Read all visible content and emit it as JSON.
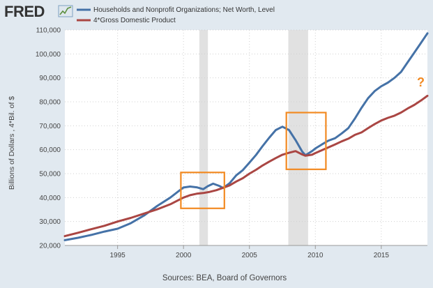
{
  "logo": {
    "text": "FRED"
  },
  "colors": {
    "background": "#e1e9f0",
    "plot_background": "#ffffff",
    "net_worth": "#4572a7",
    "gdp": "#aa4643",
    "recession": "#e1e1e1",
    "highlight": "#f28a22",
    "grid": "#d0d0d0"
  },
  "annotation": {
    "text": "?"
  },
  "source": {
    "text": "Sources: BEA, Board of Governors"
  },
  "chart_data": {
    "type": "line",
    "title": "",
    "xlabel": "",
    "ylabel": "Billions of Dollars , 4*Bil. of $",
    "xlim": [
      1991.0,
      2018.5
    ],
    "ylim": [
      20000,
      110000
    ],
    "x_ticks": [
      1995,
      2000,
      2005,
      2010,
      2015
    ],
    "x_tick_labels": [
      "1995",
      "2000",
      "2005",
      "2010",
      "2015"
    ],
    "y_ticks": [
      20000,
      30000,
      40000,
      50000,
      60000,
      70000,
      80000,
      90000,
      100000,
      110000
    ],
    "y_tick_labels": [
      "20,000",
      "30,000",
      "40,000",
      "50,000",
      "60,000",
      "70,000",
      "80,000",
      "90,000",
      "100,000",
      "110,000"
    ],
    "grid": true,
    "legend_position": "top-left",
    "recessions": [
      [
        2001.2,
        2001.85
      ],
      [
        2007.95,
        2009.45
      ]
    ],
    "highlight_boxes": [
      {
        "x": [
          1999.8,
          2003.1
        ],
        "y": [
          35500,
          50500
        ]
      },
      {
        "x": [
          2007.8,
          2010.8
        ],
        "y": [
          51800,
          75500
        ]
      }
    ],
    "series": [
      {
        "name": "Households and Nonprofit Organizations; Net Worth, Level",
        "color": "#4572a7",
        "points": [
          [
            1991.0,
            22200
          ],
          [
            1992.0,
            23200
          ],
          [
            1993.0,
            24400
          ],
          [
            1994.0,
            25800
          ],
          [
            1995.0,
            27000
          ],
          [
            1996.0,
            29300
          ],
          [
            1997.0,
            32500
          ],
          [
            1998.0,
            36500
          ],
          [
            1999.0,
            40000
          ],
          [
            1999.75,
            43200
          ],
          [
            2000.0,
            44200
          ],
          [
            2000.5,
            44600
          ],
          [
            2001.0,
            44300
          ],
          [
            2001.5,
            43500
          ],
          [
            2001.85,
            44800
          ],
          [
            2002.25,
            45800
          ],
          [
            2002.75,
            44800
          ],
          [
            2003.0,
            44000
          ],
          [
            2003.5,
            46000
          ],
          [
            2004.0,
            49300
          ],
          [
            2004.5,
            51500
          ],
          [
            2005.0,
            54600
          ],
          [
            2005.5,
            57800
          ],
          [
            2006.0,
            61500
          ],
          [
            2006.5,
            65000
          ],
          [
            2007.0,
            68200
          ],
          [
            2007.5,
            69600
          ],
          [
            2008.0,
            68200
          ],
          [
            2008.5,
            64000
          ],
          [
            2009.0,
            59200
          ],
          [
            2009.25,
            57700
          ],
          [
            2009.75,
            59400
          ],
          [
            2010.0,
            60500
          ],
          [
            2010.5,
            62200
          ],
          [
            2011.0,
            63800
          ],
          [
            2011.5,
            64800
          ],
          [
            2012.0,
            66800
          ],
          [
            2012.5,
            69000
          ],
          [
            2013.0,
            73000
          ],
          [
            2013.5,
            77500
          ],
          [
            2014.0,
            81500
          ],
          [
            2014.5,
            84500
          ],
          [
            2015.0,
            86500
          ],
          [
            2015.5,
            88000
          ],
          [
            2016.0,
            90000
          ],
          [
            2016.5,
            92500
          ],
          [
            2017.0,
            96500
          ],
          [
            2017.5,
            100500
          ],
          [
            2018.0,
            104500
          ],
          [
            2018.5,
            108600
          ]
        ]
      },
      {
        "name": "4*Gross Domestic Product",
        "color": "#aa4643",
        "points": [
          [
            1991.0,
            23900
          ],
          [
            1992.0,
            25300
          ],
          [
            1993.0,
            26800
          ],
          [
            1994.0,
            28200
          ],
          [
            1995.0,
            30000
          ],
          [
            1996.0,
            31500
          ],
          [
            1997.0,
            33300
          ],
          [
            1998.0,
            35100
          ],
          [
            1999.0,
            37200
          ],
          [
            2000.0,
            40000
          ],
          [
            2000.5,
            41000
          ],
          [
            2001.0,
            41600
          ],
          [
            2001.5,
            41900
          ],
          [
            2002.0,
            42400
          ],
          [
            2002.5,
            43100
          ],
          [
            2003.0,
            44100
          ],
          [
            2003.5,
            45100
          ],
          [
            2004.0,
            46700
          ],
          [
            2004.5,
            48100
          ],
          [
            2005.0,
            50000
          ],
          [
            2005.5,
            51600
          ],
          [
            2006.0,
            53400
          ],
          [
            2006.5,
            55000
          ],
          [
            2007.0,
            56500
          ],
          [
            2007.5,
            57900
          ],
          [
            2008.0,
            58700
          ],
          [
            2008.5,
            59400
          ],
          [
            2009.0,
            58000
          ],
          [
            2009.25,
            57500
          ],
          [
            2009.75,
            57900
          ],
          [
            2010.0,
            58600
          ],
          [
            2010.5,
            59800
          ],
          [
            2011.0,
            61000
          ],
          [
            2011.5,
            62200
          ],
          [
            2012.0,
            63500
          ],
          [
            2012.5,
            64600
          ],
          [
            2013.0,
            66200
          ],
          [
            2013.5,
            67200
          ],
          [
            2014.0,
            69000
          ],
          [
            2014.5,
            70700
          ],
          [
            2015.0,
            72200
          ],
          [
            2015.5,
            73300
          ],
          [
            2016.0,
            74200
          ],
          [
            2016.5,
            75500
          ],
          [
            2017.0,
            77200
          ],
          [
            2017.5,
            78700
          ],
          [
            2018.0,
            80500
          ],
          [
            2018.5,
            82500
          ]
        ]
      }
    ]
  }
}
